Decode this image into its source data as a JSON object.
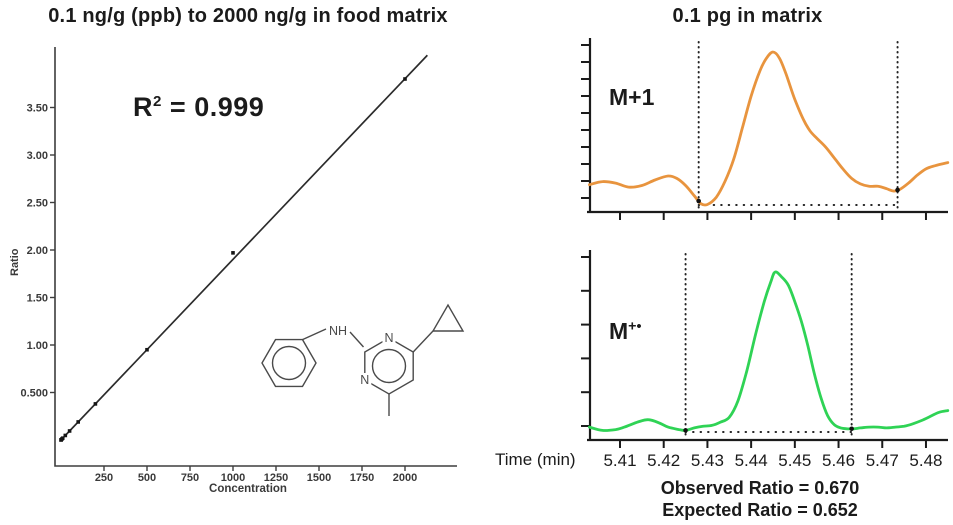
{
  "chart_data": [
    {
      "type": "scatter",
      "title": "0.1 ng/g (ppb) to 2000 ng/g in food matrix",
      "xlabel": "Concentration",
      "ylabel": "Ratio",
      "annotation": "R² = 0.999",
      "annotation_parts": {
        "base": "R",
        "sup": "2",
        "rest": "= 0.999"
      },
      "x_ticks": [
        250,
        500,
        750,
        1000,
        1250,
        1500,
        1750,
        2000
      ],
      "y_tick_labels": [
        "3.50",
        "3.00",
        "2.50",
        "2.00",
        "1.50",
        "1.00",
        "0.500"
      ],
      "y_tick_values": [
        3.5,
        3.0,
        2.5,
        2.0,
        1.5,
        1.0,
        0.5
      ],
      "xlim": [
        0,
        2330
      ],
      "ylim": [
        0,
        4.4
      ],
      "points": {
        "x": [
          0.1,
          1,
          5,
          10,
          25,
          50,
          100,
          200,
          500,
          1000,
          2000
        ],
        "y": [
          0.0002,
          0.002,
          0.01,
          0.019,
          0.048,
          0.095,
          0.19,
          0.38,
          0.95,
          1.97,
          3.8
        ]
      },
      "fit_line": {
        "x": [
          2,
          2130
        ],
        "y": [
          0.004,
          4.05
        ]
      }
    },
    {
      "type": "line",
      "title": "0.1 pg in matrix",
      "xlabel": "Time (min)",
      "x_ticks": [
        "5.41",
        "5.42",
        "5.43",
        "5.44",
        "5.45",
        "5.46",
        "5.47",
        "5.48"
      ],
      "xlim": [
        5.402,
        5.485
      ],
      "annotations": [
        "Observed Ratio = 0.670",
        "Expected Ratio = 0.652"
      ],
      "series": [
        {
          "name": "M+1",
          "label_main": "M+1",
          "label_sup": "",
          "color": "#E8943E",
          "peak_window": [
            5.428,
            5.4735
          ],
          "y_tick_count": 10,
          "x": [
            5.403,
            5.406,
            5.409,
            5.412,
            5.415,
            5.418,
            5.421,
            5.423,
            5.425,
            5.427,
            5.4285,
            5.43,
            5.432,
            5.434,
            5.436,
            5.438,
            5.44,
            5.442,
            5.4435,
            5.445,
            5.4465,
            5.448,
            5.45,
            5.452,
            5.4535,
            5.455,
            5.457,
            5.459,
            5.461,
            5.463,
            5.465,
            5.467,
            5.469,
            5.471,
            5.4725,
            5.474,
            5.476,
            5.478,
            5.48,
            5.482,
            5.485
          ],
          "y": [
            0.16,
            0.18,
            0.17,
            0.145,
            0.155,
            0.19,
            0.215,
            0.2,
            0.155,
            0.09,
            0.04,
            0.035,
            0.08,
            0.18,
            0.32,
            0.52,
            0.72,
            0.88,
            0.96,
            1.0,
            0.96,
            0.86,
            0.7,
            0.57,
            0.5,
            0.455,
            0.4,
            0.33,
            0.26,
            0.2,
            0.165,
            0.15,
            0.15,
            0.135,
            0.12,
            0.13,
            0.17,
            0.22,
            0.26,
            0.28,
            0.3
          ]
        },
        {
          "name": "M+•",
          "label_main": "M",
          "label_sup": "+•",
          "color": "#2FD355",
          "peak_window": [
            5.425,
            5.463
          ],
          "y_tick_count": 6,
          "x": [
            5.403,
            5.406,
            5.409,
            5.411,
            5.414,
            5.4165,
            5.419,
            5.421,
            5.4235,
            5.425,
            5.427,
            5.429,
            5.431,
            5.433,
            5.435,
            5.437,
            5.439,
            5.441,
            5.443,
            5.4445,
            5.4455,
            5.447,
            5.4485,
            5.45,
            5.4515,
            5.453,
            5.4545,
            5.456,
            5.4575,
            5.459,
            5.4605,
            5.462,
            5.4635,
            5.465,
            5.467,
            5.469,
            5.471,
            5.473,
            5.475,
            5.477,
            5.479,
            5.481,
            5.483,
            5.485
          ],
          "y": [
            0.06,
            0.04,
            0.045,
            0.06,
            0.09,
            0.105,
            0.085,
            0.06,
            0.045,
            0.04,
            0.055,
            0.065,
            0.07,
            0.09,
            0.12,
            0.22,
            0.4,
            0.62,
            0.82,
            0.94,
            1.0,
            0.97,
            0.92,
            0.82,
            0.7,
            0.55,
            0.38,
            0.235,
            0.13,
            0.075,
            0.055,
            0.05,
            0.05,
            0.055,
            0.06,
            0.06,
            0.055,
            0.06,
            0.065,
            0.08,
            0.1,
            0.125,
            0.15,
            0.16
          ]
        }
      ]
    }
  ],
  "structure": {
    "atom_labels": [
      "NH",
      "N",
      "N"
    ]
  },
  "colors": {
    "axis_left": "#3d3d3d",
    "axis_right": "#1b1b1b",
    "fit_line": "#2b2b2b",
    "points": "#151515",
    "dotted": "#222222",
    "structure": "#4a4a4a",
    "m1_trace": "#E8943E",
    "mplus_trace": "#2FD355"
  }
}
